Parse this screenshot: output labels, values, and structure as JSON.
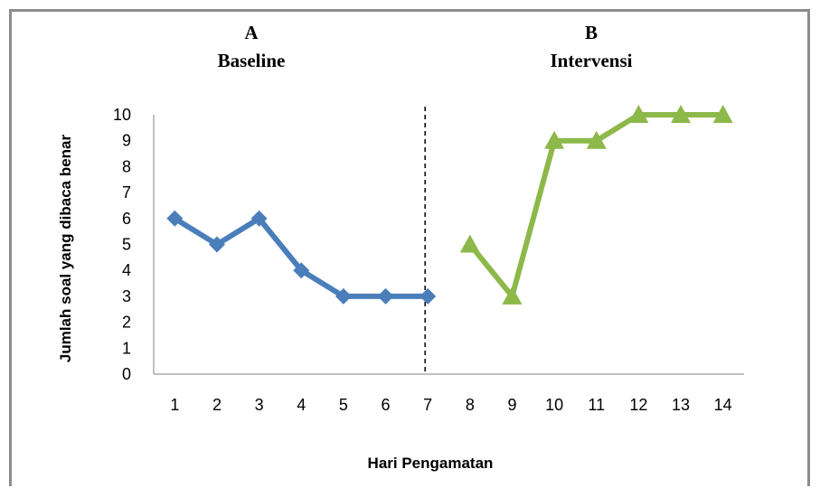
{
  "chart_data": {
    "type": "line",
    "title": "",
    "xlabel": "Hari Pengamatan",
    "ylabel": "Jumlah soal yang dibaca benar",
    "categories": [
      "1",
      "2",
      "3",
      "4",
      "5",
      "6",
      "7",
      "8",
      "9",
      "10",
      "11",
      "12",
      "13",
      "14"
    ],
    "ylim": [
      0,
      10
    ],
    "yticks": [
      "0",
      "1",
      "2",
      "3",
      "4",
      "5",
      "6",
      "7",
      "8",
      "9",
      "10"
    ],
    "grid": false,
    "phases": [
      {
        "letter": "A",
        "name": "Baseline"
      },
      {
        "letter": "B",
        "name": "Intervensi"
      }
    ],
    "phase_divider_after": 7,
    "series": [
      {
        "x": [
          1,
          2,
          3,
          4,
          5,
          6,
          7
        ],
        "values": [
          6,
          5,
          6,
          4,
          3,
          3,
          3
        ],
        "color": "#4a7ebb",
        "marker": "diamond"
      },
      {
        "x": [
          8,
          9,
          10,
          11,
          12,
          13,
          14
        ],
        "values": [
          5,
          3,
          9,
          9,
          10,
          10,
          10
        ],
        "color": "#8db84a",
        "marker": "triangle"
      }
    ]
  }
}
